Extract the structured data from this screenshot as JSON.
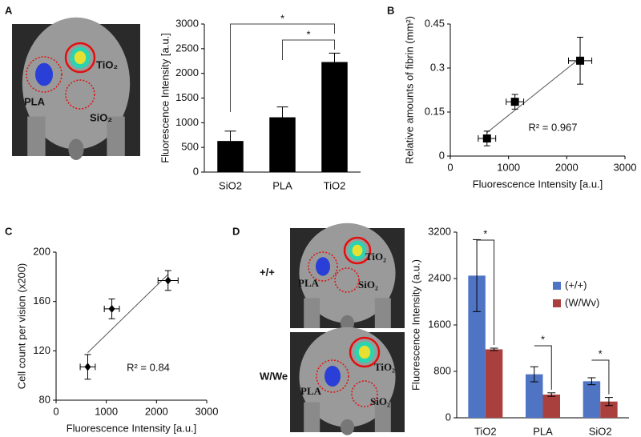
{
  "panel_labels": [
    "A",
    "B",
    "C",
    "D"
  ],
  "images": [
    {
      "labels": [
        "TiO₂",
        "PLA",
        "SiO₂"
      ]
    },
    {
      "caption": "+/+",
      "labels": [
        "TiO₂",
        "PLA",
        "SiO₂"
      ]
    },
    {
      "caption": "W/We",
      "labels": [
        "TiO₂",
        "PLA",
        "SiO₂"
      ]
    }
  ],
  "chart_data": [
    {
      "type": "bar",
      "categories": [
        "SiO2",
        "PLA",
        "TiO2"
      ],
      "values": [
        630,
        1110,
        2230
      ],
      "errors": [
        200,
        210,
        180
      ],
      "color": "#000000",
      "ylim": [
        0,
        3000
      ],
      "yticks": [
        0,
        500,
        1000,
        1500,
        2000,
        2500,
        3000
      ],
      "y_label": "Fluorescence Intensity [a.u.]",
      "annotations": [
        "*",
        "*"
      ]
    },
    {
      "type": "scatter",
      "marker": "square",
      "x": [
        630,
        1110,
        2230
      ],
      "y": [
        0.06,
        0.185,
        0.325
      ],
      "xerr": [
        150,
        150,
        200
      ],
      "yerr": [
        0.025,
        0.025,
        0.08
      ],
      "xlim": [
        0,
        3000
      ],
      "xticks": [
        0,
        1000,
        2000,
        3000
      ],
      "ylim": [
        0,
        0.45
      ],
      "yticks": [
        0,
        0.15,
        0.3,
        0.45
      ],
      "x_label": "Fluorescence Intensity [a.u.]",
      "y_label": "Relative amounts of fibrin (mm²)",
      "annotations": [
        "R² = 0.967"
      ]
    },
    {
      "type": "scatter",
      "marker": "diamond",
      "x": [
        630,
        1110,
        2230
      ],
      "y": [
        107,
        154,
        177
      ],
      "xerr": [
        150,
        150,
        200
      ],
      "yerr": [
        10,
        8,
        8
      ],
      "xlim": [
        0,
        3000
      ],
      "xticks": [
        0,
        1000,
        2000,
        3000
      ],
      "ylim": [
        80,
        200
      ],
      "yticks": [
        80,
        120,
        160,
        200
      ],
      "x_label": "Fluorescence Intensity [a.u.]",
      "y_label": "Cell count per vision (x200)",
      "annotations": [
        "R² = 0.84"
      ]
    },
    {
      "type": "bar",
      "categories": [
        "TiO2",
        "PLA",
        "SiO2"
      ],
      "series": [
        {
          "name": "(+/+)",
          "color": "#4f74c4",
          "values": [
            2450,
            750,
            630
          ],
          "errors": [
            620,
            130,
            60
          ]
        },
        {
          "name": "(W/Wv)",
          "color": "#a9403e",
          "values": [
            1180,
            400,
            280
          ],
          "errors": [
            20,
            30,
            70
          ]
        }
      ],
      "ylim": [
        0,
        3200
      ],
      "yticks": [
        0,
        800,
        1600,
        2400,
        3200
      ],
      "y_label": "Fluorescence Intensity (a.u.)",
      "annotations": [
        "*",
        "*",
        "*"
      ]
    }
  ]
}
